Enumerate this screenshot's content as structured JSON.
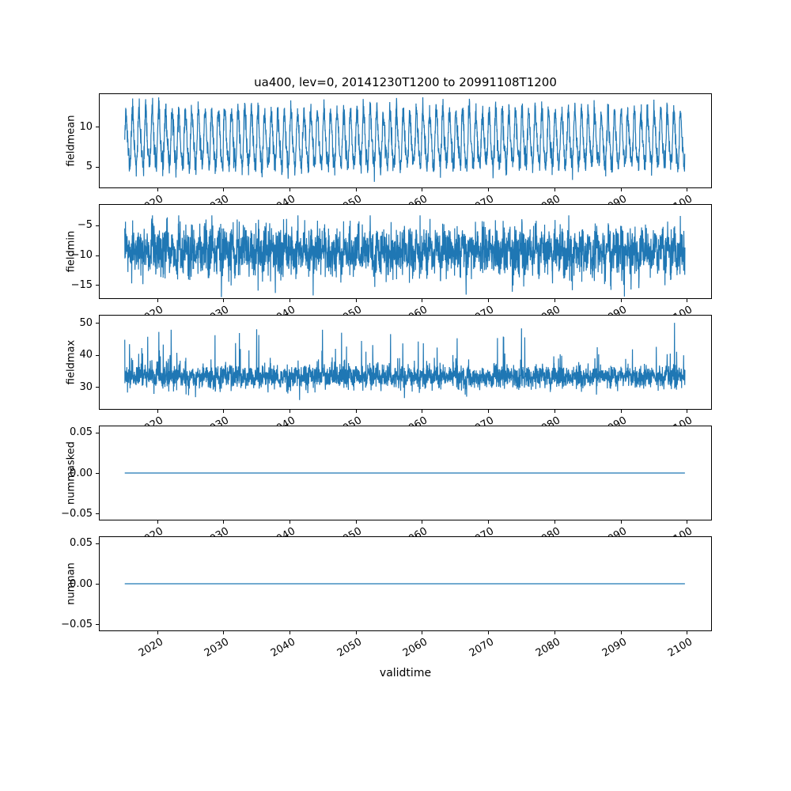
{
  "figure": {
    "title": "ua400, lev=0, 20141230T1200 to 20991108T1200",
    "xlabel": "validtime",
    "line_color": "#1f77b4",
    "background": "#ffffff",
    "xlim": [
      2011.2,
      2103.8
    ],
    "xticks": [
      2020,
      2030,
      2040,
      2050,
      2060,
      2070,
      2080,
      2090,
      2100
    ],
    "xtick_labels": [
      "2020",
      "2030",
      "2040",
      "2050",
      "2060",
      "2070",
      "2080",
      "2090",
      "2100"
    ]
  },
  "chart_data": [
    {
      "type": "line",
      "ylabel": "fieldmean",
      "x_start": 2015.0,
      "x_end": 2099.86,
      "samples_per_year": 36,
      "ylim": [
        2.3,
        14.2
      ],
      "yticks": [
        5,
        10
      ],
      "ytick_labels": [
        "5",
        "10"
      ],
      "synthesis": {
        "seed": 11,
        "baseline": 8.3,
        "seasonal_amp": 3.2,
        "harmonic2": 0.7,
        "phase": 0.3,
        "noise_sd": 0.75,
        "clip_min": 3.0,
        "clip_max": 13.8
      }
    },
    {
      "type": "line",
      "ylabel": "fieldmin",
      "x_start": 2015.0,
      "x_end": 2099.86,
      "samples_per_year": 36,
      "ylim": [
        -17.4,
        -1.4
      ],
      "yticks": [
        -15,
        -10,
        -5
      ],
      "ytick_labels": [
        "−15",
        "−10",
        "−5"
      ],
      "synthesis": {
        "seed": 23,
        "baseline": -9.4,
        "seasonal_amp": 1.1,
        "phase": 0.0,
        "noise_sd": 2.0,
        "spike_prob": 0.012,
        "spike_sign": -1,
        "spike_min": 2.5,
        "spike_max": 6.5,
        "clip_min": -17.3,
        "clip_max": -3.2
      }
    },
    {
      "type": "line",
      "ylabel": "fieldmax",
      "x_start": 2015.0,
      "x_end": 2099.86,
      "samples_per_year": 36,
      "ylim": [
        22.8,
        52.6
      ],
      "yticks": [
        30,
        40,
        50
      ],
      "ytick_labels": [
        "30",
        "40",
        "50"
      ],
      "synthesis": {
        "seed": 37,
        "baseline": 33.0,
        "seasonal_amp": 0.8,
        "phase": 1.1,
        "noise_sd": 1.8,
        "spike_prob": 0.04,
        "spike_sign": 1,
        "spike_min": 2.0,
        "spike_max": 15.0,
        "clip_min": 24.8,
        "clip_max": 50.3
      }
    },
    {
      "type": "line",
      "ylabel": "nummasked",
      "x_start": 2015.0,
      "x_end": 2099.86,
      "samples_per_year": 36,
      "ylim": [
        -0.0583,
        0.0583
      ],
      "yticks": [
        0.05,
        0.0,
        -0.05
      ],
      "ytick_labels": [
        "0.05",
        "0.00",
        "−0.05"
      ],
      "synthesis": {
        "seed": 1,
        "baseline": 0.0,
        "seasonal_amp": 0.0,
        "noise_sd": 0.0
      }
    },
    {
      "type": "line",
      "ylabel": "numnan",
      "x_start": 2015.0,
      "x_end": 2099.86,
      "samples_per_year": 36,
      "ylim": [
        -0.0583,
        0.0583
      ],
      "yticks": [
        0.05,
        0.0,
        -0.05
      ],
      "ytick_labels": [
        "0.05",
        "0.00",
        "−0.05"
      ],
      "synthesis": {
        "seed": 2,
        "baseline": 0.0,
        "seasonal_amp": 0.0,
        "noise_sd": 0.0
      }
    }
  ]
}
